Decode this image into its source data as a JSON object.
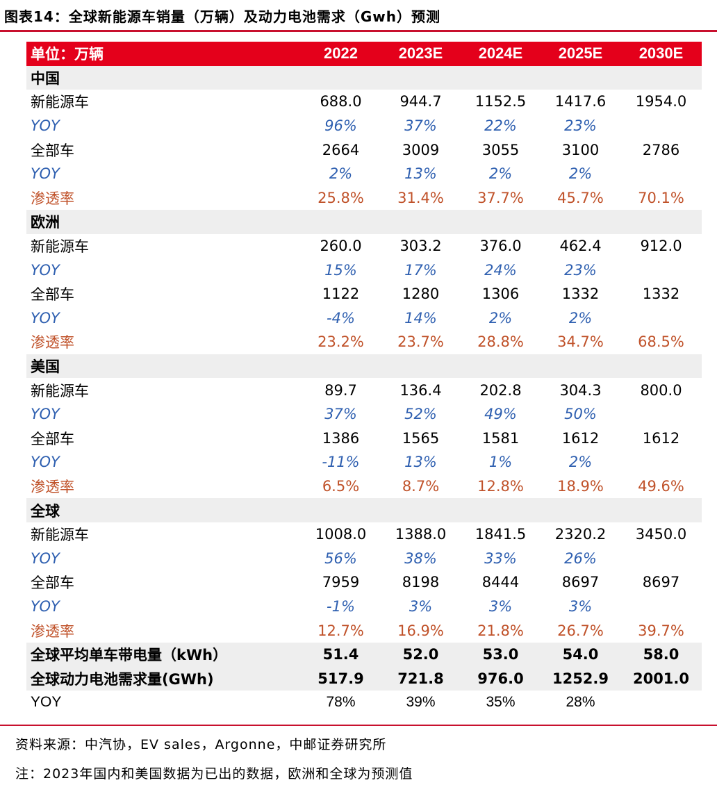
{
  "title": "图表14：全球新能源车销量（万辆）及动力电池需求（Gwh）预测",
  "header": {
    "label": "单位：万辆",
    "years": [
      "2022",
      "2023E",
      "2024E",
      "2025E",
      "2030E"
    ]
  },
  "regions": [
    {
      "name": "中国",
      "rows": [
        {
          "label": "新能源车",
          "kind": "normal",
          "values": [
            "688.0",
            "944.7",
            "1152.5",
            "1417.6",
            "1954.0"
          ]
        },
        {
          "label": "YOY",
          "kind": "yoy",
          "values": [
            "96%",
            "37%",
            "22%",
            "23%",
            ""
          ]
        },
        {
          "label": "全部车",
          "kind": "normal",
          "values": [
            "2664",
            "3009",
            "3055",
            "3100",
            "2786"
          ]
        },
        {
          "label": "YOY",
          "kind": "yoy",
          "values": [
            "2%",
            "13%",
            "2%",
            "2%",
            ""
          ]
        },
        {
          "label": "渗透率",
          "kind": "pen",
          "values": [
            "25.8%",
            "31.4%",
            "37.7%",
            "45.7%",
            "70.1%"
          ]
        }
      ]
    },
    {
      "name": "欧洲",
      "rows": [
        {
          "label": "新能源车",
          "kind": "normal",
          "values": [
            "260.0",
            "303.2",
            "376.0",
            "462.4",
            "912.0"
          ]
        },
        {
          "label": "YOY",
          "kind": "yoy",
          "values": [
            "15%",
            "17%",
            "24%",
            "23%",
            ""
          ]
        },
        {
          "label": "全部车",
          "kind": "normal",
          "values": [
            "1122",
            "1280",
            "1306",
            "1332",
            "1332"
          ]
        },
        {
          "label": "YOY",
          "kind": "yoy",
          "values": [
            "-4%",
            "14%",
            "2%",
            "2%",
            ""
          ]
        },
        {
          "label": "渗透率",
          "kind": "pen",
          "values": [
            "23.2%",
            "23.7%",
            "28.8%",
            "34.7%",
            "68.5%"
          ]
        }
      ]
    },
    {
      "name": "美国",
      "rows": [
        {
          "label": "新能源车",
          "kind": "normal",
          "values": [
            "89.7",
            "136.4",
            "202.8",
            "304.3",
            "800.0"
          ]
        },
        {
          "label": "YOY",
          "kind": "yoy",
          "values": [
            "37%",
            "52%",
            "49%",
            "50%",
            ""
          ]
        },
        {
          "label": "全部车",
          "kind": "normal",
          "values": [
            "1386",
            "1565",
            "1581",
            "1612",
            "1612"
          ]
        },
        {
          "label": "YOY",
          "kind": "yoy",
          "values": [
            "-11%",
            "13%",
            "1%",
            "2%",
            ""
          ]
        },
        {
          "label": "渗透率",
          "kind": "pen",
          "values": [
            "6.5%",
            "8.7%",
            "12.8%",
            "18.9%",
            "49.6%"
          ]
        }
      ]
    },
    {
      "name": "全球",
      "rows": [
        {
          "label": "新能源车",
          "kind": "normal",
          "values": [
            "1008.0",
            "1388.0",
            "1841.5",
            "2320.2",
            "3450.0"
          ]
        },
        {
          "label": "YOY",
          "kind": "yoy",
          "values": [
            "56%",
            "38%",
            "33%",
            "26%",
            ""
          ]
        },
        {
          "label": "全部车",
          "kind": "normal",
          "values": [
            "7959",
            "8198",
            "8444",
            "8697",
            "8697"
          ]
        },
        {
          "label": "YOY",
          "kind": "yoy",
          "values": [
            "-1%",
            "3%",
            "3%",
            "3%",
            ""
          ]
        },
        {
          "label": "渗透率",
          "kind": "pen",
          "values": [
            "12.7%",
            "16.9%",
            "21.8%",
            "26.7%",
            "39.7%"
          ]
        }
      ]
    }
  ],
  "summary": [
    {
      "label": "全球平均单车带电量（kWh）",
      "kind": "agg",
      "values": [
        "51.4",
        "52.0",
        "53.0",
        "54.0",
        "58.0"
      ]
    },
    {
      "label": "全球动力电池需求量(GWh)",
      "kind": "agg",
      "values": [
        "517.9",
        "721.8",
        "976.0",
        "1252.9",
        "2001.0"
      ]
    },
    {
      "label": "YOY",
      "kind": "plain",
      "values": [
        "78%",
        "39%",
        "35%",
        "28%",
        ""
      ]
    }
  ],
  "notes": {
    "source": "资料来源：中汽协，EV sales，Argonne，中邮证券研究所",
    "footnote": "注：2023年国内和美国数据为已出的数据，欧洲和全球为预测值"
  },
  "colors": {
    "accent": "#e4001b",
    "yoy": "#2e5fb0",
    "penetration": "#c0522a",
    "band": "#eeeeee"
  }
}
